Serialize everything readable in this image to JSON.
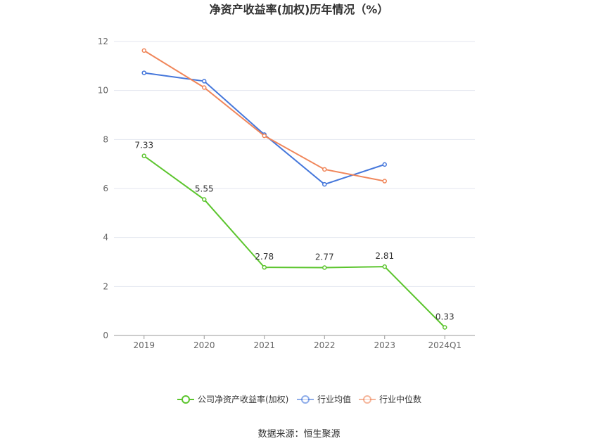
{
  "chart_data": {
    "type": "line",
    "title": "净资产收益率(加权)历年情况（%）",
    "categories": [
      "2019",
      "2020",
      "2021",
      "2022",
      "2023",
      "2024Q1"
    ],
    "ylim": [
      0,
      12
    ],
    "yticks": [
      "0",
      "2",
      "4",
      "6",
      "8",
      "10",
      "12"
    ],
    "grid": true,
    "legend_position": "bottom",
    "series": [
      {
        "name": "公司净资产收益率(加权)",
        "color": "#5cc52e",
        "values": [
          7.33,
          5.55,
          2.78,
          2.77,
          2.81,
          0.33
        ],
        "labels": [
          "7.33",
          "5.55",
          "2.78",
          "2.77",
          "2.81",
          "0.33"
        ]
      },
      {
        "name": "行业均值",
        "color": "#4577db",
        "values": [
          10.72,
          10.38,
          8.2,
          6.17,
          6.98,
          null
        ]
      },
      {
        "name": "行业中位数",
        "color": "#f0865a",
        "values": [
          11.63,
          10.12,
          8.15,
          6.78,
          6.3,
          null
        ]
      }
    ],
    "source": "数据来源：恒生聚源"
  }
}
